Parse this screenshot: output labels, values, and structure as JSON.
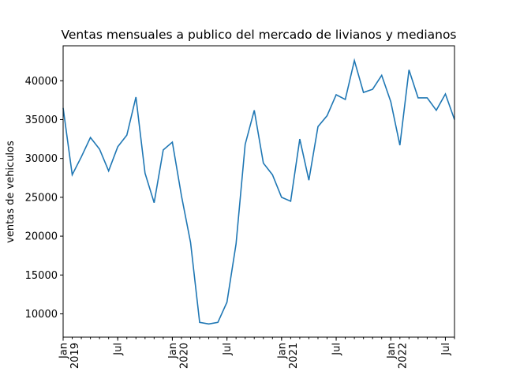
{
  "chart_data": {
    "type": "line",
    "title": "Ventas mensuales a publico del mercado de livianos y medianos",
    "xlabel": "",
    "ylabel": "ventas de vehiculos",
    "line_color": "#1f77b4",
    "grid": false,
    "legend": "none",
    "x_start": "2019-01",
    "x_end": "2022-08",
    "ylim": [
      7000,
      44500
    ],
    "yticks": [
      10000,
      15000,
      20000,
      25000,
      30000,
      35000,
      40000
    ],
    "xtick_labels": [
      {
        "month": "2019-01",
        "text": "Jan",
        "year": "2019"
      },
      {
        "month": "2019-07",
        "text": "Jul",
        "year": ""
      },
      {
        "month": "2020-01",
        "text": "Jan",
        "year": "2020"
      },
      {
        "month": "2020-07",
        "text": "Jul",
        "year": ""
      },
      {
        "month": "2021-01",
        "text": "Jan",
        "year": "2021"
      },
      {
        "month": "2021-07",
        "text": "Jul",
        "year": ""
      },
      {
        "month": "2022-01",
        "text": "Jan",
        "year": "2022"
      },
      {
        "month": "2022-07",
        "text": "Jul",
        "year": ""
      }
    ],
    "x": [
      "2019-01",
      "2019-02",
      "2019-03",
      "2019-04",
      "2019-05",
      "2019-06",
      "2019-07",
      "2019-08",
      "2019-09",
      "2019-10",
      "2019-11",
      "2019-12",
      "2020-01",
      "2020-02",
      "2020-03",
      "2020-04",
      "2020-05",
      "2020-06",
      "2020-07",
      "2020-08",
      "2020-09",
      "2020-10",
      "2020-11",
      "2020-12",
      "2021-01",
      "2021-02",
      "2021-03",
      "2021-04",
      "2021-05",
      "2021-06",
      "2021-07",
      "2021-08",
      "2021-09",
      "2021-10",
      "2021-11",
      "2021-12",
      "2022-01",
      "2022-02",
      "2022-03",
      "2022-04",
      "2022-05",
      "2022-06",
      "2022-07",
      "2022-08"
    ],
    "series": [
      {
        "values": [
          36500,
          27900,
          30200,
          32700,
          31200,
          28400,
          31500,
          33000,
          37900,
          28100,
          24300,
          31100,
          32100,
          25200,
          19200,
          8900,
          8700,
          8900,
          11500,
          19000,
          31800,
          36200,
          29400,
          27900,
          25000,
          24500,
          32500,
          27200,
          34100,
          35500,
          38200,
          37600,
          42600,
          38500,
          38900,
          40700,
          37300,
          31700,
          41400,
          37800,
          37800,
          36200,
          38300,
          35000
        ]
      }
    ]
  }
}
